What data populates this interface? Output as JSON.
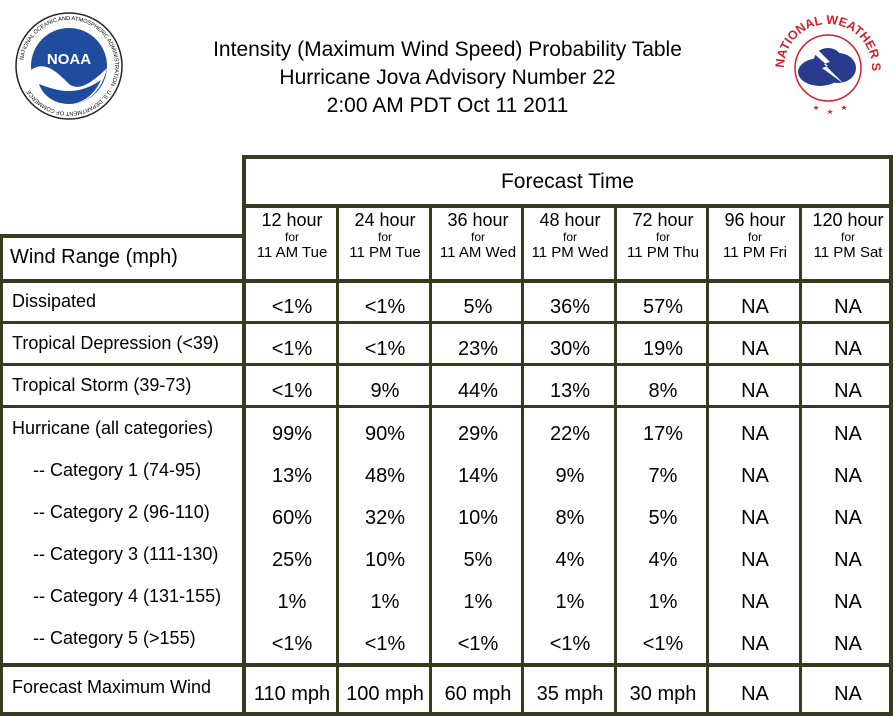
{
  "header": {
    "title_lines": [
      "Intensity (Maximum Wind Speed) Probability Table",
      "Hurricane Jova Advisory Number 22",
      "2:00 AM PDT Oct 11 2011"
    ],
    "noaa_logo_text": "NOAA",
    "noaa_ring_text": "NATIONAL OCEANIC AND ATMOSPHERIC ADMINISTRATION · U.S. DEPARTMENT OF COMMERCE",
    "nws_ring_text": "NATIONAL WEATHER SERVICE"
  },
  "table": {
    "forecast_time_label": "Forecast Time",
    "wind_range_label": "Wind Range (mph)",
    "columns": [
      {
        "hours": "12 hour",
        "for": "for",
        "time": "11 AM Tue"
      },
      {
        "hours": "24 hour",
        "for": "for",
        "time": "11 PM Tue"
      },
      {
        "hours": "36 hour",
        "for": "for",
        "time": "11 AM Wed"
      },
      {
        "hours": "48 hour",
        "for": "for",
        "time": "11 PM Wed"
      },
      {
        "hours": "72 hour",
        "for": "for",
        "time": "11 PM Thu"
      },
      {
        "hours": "96 hour",
        "for": "for",
        "time": "11 PM Fri"
      },
      {
        "hours": "120 hour",
        "for": "for",
        "time": "11 PM Sat"
      }
    ],
    "rows": [
      {
        "label": "Dissipated",
        "values": [
          "<1%",
          "<1%",
          "5%",
          "36%",
          "57%",
          "NA",
          "NA"
        ]
      },
      {
        "label": "Tropical Depression (<39)",
        "values": [
          "<1%",
          "<1%",
          "23%",
          "30%",
          "19%",
          "NA",
          "NA"
        ]
      },
      {
        "label": "Tropical Storm (39-73)",
        "values": [
          "<1%",
          "9%",
          "44%",
          "13%",
          "8%",
          "NA",
          "NA"
        ]
      },
      {
        "label": "Hurricane (all categories)",
        "values": [
          "99%",
          "90%",
          "29%",
          "22%",
          "17%",
          "NA",
          "NA"
        ]
      },
      {
        "label": "-- Category 1 (74-95)",
        "values": [
          "13%",
          "48%",
          "14%",
          "9%",
          "7%",
          "NA",
          "NA"
        ]
      },
      {
        "label": "-- Category 2 (96-110)",
        "values": [
          "60%",
          "32%",
          "10%",
          "8%",
          "5%",
          "NA",
          "NA"
        ]
      },
      {
        "label": "-- Category 3 (111-130)",
        "values": [
          "25%",
          "10%",
          "5%",
          "4%",
          "4%",
          "NA",
          "NA"
        ]
      },
      {
        "label": "-- Category 4 (131-155)",
        "values": [
          "1%",
          "1%",
          "1%",
          "1%",
          "1%",
          "NA",
          "NA"
        ]
      },
      {
        "label": "-- Category 5 (>155)",
        "values": [
          "<1%",
          "<1%",
          "<1%",
          "<1%",
          "<1%",
          "NA",
          "NA"
        ]
      },
      {
        "label": "Forecast Maximum Wind",
        "values": [
          "110 mph",
          "100 mph",
          "60 mph",
          "35 mph",
          "30 mph",
          "NA",
          "NA"
        ]
      }
    ]
  },
  "colors": {
    "border": "#3a3a20",
    "noaa_blue": "#1f4c9c",
    "nws_red": "#d4202a",
    "nws_cloud": "#2a3a8c"
  }
}
